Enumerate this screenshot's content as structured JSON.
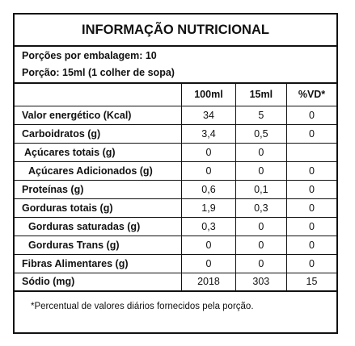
{
  "title": "INFORMAÇÃO NUTRICIONAL",
  "servings_per_package": "Porções por embalagem: 10",
  "serving_size": "Porção: 15ml (1 colher de sopa)",
  "columns": [
    "",
    "100ml",
    "15ml",
    "%VD*"
  ],
  "rows": [
    {
      "label": "Valor energético (Kcal)",
      "per100": "34",
      "per_serving": "5",
      "vd": "0"
    },
    {
      "label": "Carboidratos (g)",
      "per100": "3,4",
      "per_serving": "0,5",
      "vd": "0"
    },
    {
      "label": "Açúcares totais (g)",
      "per100": "0",
      "per_serving": "0",
      "vd": ""
    },
    {
      "label": "Açúcares Adicionados (g)",
      "per100": "0",
      "per_serving": "0",
      "vd": "0"
    },
    {
      "label": "Proteínas (g)",
      "per100": "0,6",
      "per_serving": "0,1",
      "vd": "0"
    },
    {
      "label": "Gorduras totais (g)",
      "per100": "1,9",
      "per_serving": "0,3",
      "vd": "0"
    },
    {
      "label": "Gorduras saturadas (g)",
      "per100": "0,3",
      "per_serving": "0",
      "vd": "0"
    },
    {
      "label": "Gorduras Trans (g)",
      "per100": "0",
      "per_serving": "0",
      "vd": "0"
    },
    {
      "label": "Fibras Alimentares (g)",
      "per100": "0",
      "per_serving": "0",
      "vd": "0"
    },
    {
      "label": "Sódio (mg)",
      "per100": "2018",
      "per_serving": "303",
      "vd": "15"
    }
  ],
  "footnote": "*Percentual de valores diários fornecidos pela porção."
}
